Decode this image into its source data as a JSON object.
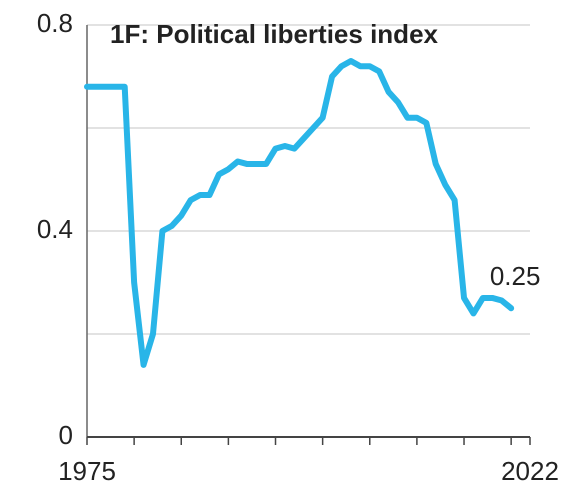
{
  "chart_data": {
    "type": "line",
    "title": "1F: Political liberties index",
    "x": [
      1975,
      1976,
      1977,
      1978,
      1979,
      1980,
      1981,
      1982,
      1983,
      1984,
      1985,
      1986,
      1987,
      1988,
      1989,
      1990,
      1991,
      1992,
      1993,
      1994,
      1995,
      1996,
      1997,
      1998,
      1999,
      2000,
      2001,
      2002,
      2003,
      2004,
      2005,
      2006,
      2007,
      2008,
      2009,
      2010,
      2011,
      2012,
      2013,
      2014,
      2015,
      2016,
      2017,
      2018,
      2019,
      2020
    ],
    "series": [
      {
        "name": "Political liberties index",
        "color": "#29b5e8",
        "values": [
          0.68,
          0.68,
          0.68,
          0.68,
          0.68,
          0.3,
          0.14,
          0.2,
          0.4,
          0.41,
          0.43,
          0.46,
          0.47,
          0.47,
          0.51,
          0.52,
          0.535,
          0.53,
          0.53,
          0.53,
          0.56,
          0.565,
          0.56,
          0.58,
          0.6,
          0.62,
          0.7,
          0.72,
          0.73,
          0.72,
          0.72,
          0.71,
          0.67,
          0.65,
          0.62,
          0.62,
          0.61,
          0.53,
          0.49,
          0.46,
          0.27,
          0.24,
          0.27,
          0.27,
          0.265,
          0.25
        ]
      }
    ],
    "annotations": [
      {
        "text": "0.25"
      }
    ],
    "xlim": [
      1975,
      2022
    ],
    "xticks": [
      1975,
      {
        "value": 1980,
        "label": null
      },
      {
        "value": 1985,
        "label": null
      },
      {
        "value": 1990,
        "label": null
      },
      {
        "value": 1995,
        "label": null
      },
      {
        "value": 2000,
        "label": null
      },
      {
        "value": 2005,
        "label": null
      },
      {
        "value": 2010,
        "label": null
      },
      {
        "value": 2015,
        "label": null
      },
      {
        "value": 2020,
        "label": null
      },
      2022
    ],
    "ylim": [
      0,
      0.8
    ],
    "yticks": [
      0,
      {
        "value": 0.2,
        "label": null
      },
      0.4,
      {
        "value": 0.6,
        "label": null
      },
      0.8
    ],
    "grid": true
  }
}
